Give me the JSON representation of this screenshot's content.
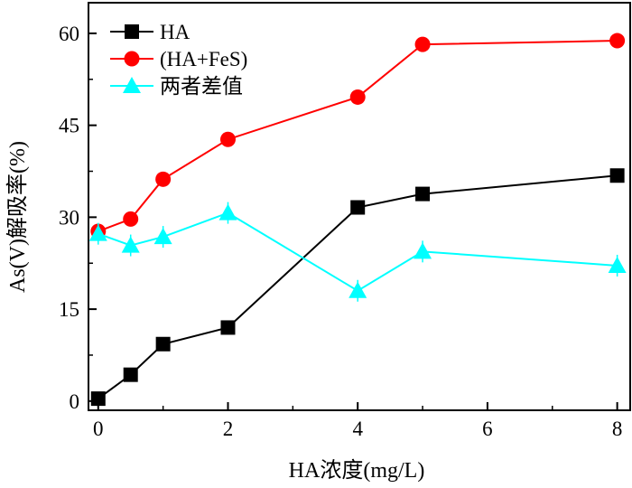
{
  "chart_data": {
    "type": "line",
    "xlabel": "HA浓度(mg/L)",
    "ylabel": "As(V)解吸率(%)",
    "xlim": [
      -0.15,
      8.2
    ],
    "ylim": [
      -1.5,
      65
    ],
    "x_ticks": [
      0,
      2,
      4,
      6,
      8
    ],
    "x_tick_labels": [
      "0",
      "2",
      "4",
      "6",
      "8"
    ],
    "y_ticks": [
      0,
      15,
      30,
      45,
      60
    ],
    "y_tick_labels": [
      "0",
      "15",
      "30",
      "45",
      "60"
    ],
    "legend_position": "top-left",
    "series": [
      {
        "name": "HA",
        "marker": "square",
        "color": "#000000",
        "x": [
          0,
          0.5,
          1,
          2,
          4,
          5,
          8
        ],
        "y": [
          0.4,
          4.3,
          9.3,
          12.0,
          31.6,
          33.8,
          36.8
        ]
      },
      {
        "name": "(HA+FeS)",
        "marker": "circle",
        "color": "#ff0000",
        "x": [
          0,
          0.5,
          1,
          2,
          4,
          5,
          8
        ],
        "y": [
          27.7,
          29.7,
          36.2,
          42.7,
          49.6,
          58.2,
          58.8
        ]
      },
      {
        "name": "两者差值",
        "marker": "triangle",
        "color": "#00ffff",
        "x": [
          0,
          0.5,
          1,
          2,
          4,
          5,
          8
        ],
        "y": [
          27.3,
          25.4,
          26.8,
          30.7,
          18.0,
          24.4,
          22.1
        ]
      }
    ]
  }
}
